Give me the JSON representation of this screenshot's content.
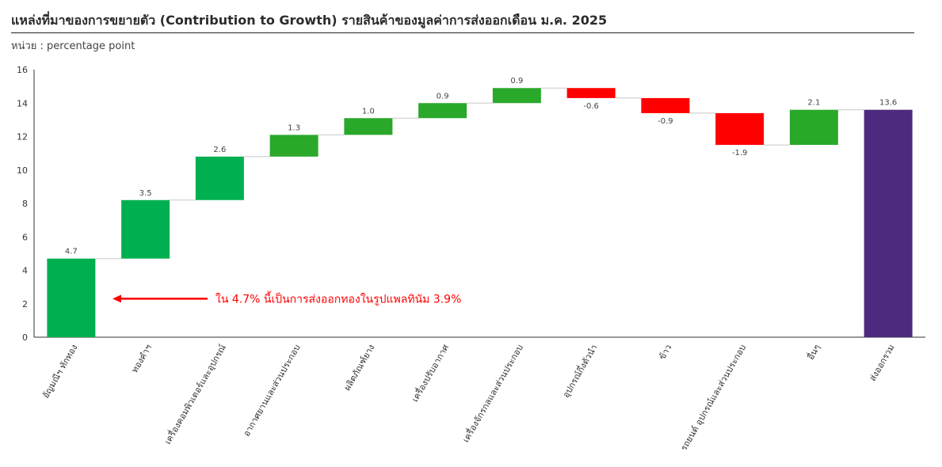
{
  "header": {
    "title": "แหล่งที่มาของการขยายตัว (Contribution to Growth) รายสินค้าของมูลค่าการส่งออกเดือน ม.ค. 2025",
    "unit": "หน่วย : percentage point"
  },
  "chart_data": {
    "type": "bar",
    "subtype": "waterfall",
    "ylim": [
      0,
      16
    ],
    "yticks": [
      0,
      2,
      4,
      6,
      8,
      10,
      12,
      14,
      16
    ],
    "grid": false,
    "categories": [
      "อัญมณีฯ ทักทอง",
      "ทองคำฯ",
      "เครื่องคอมพิวเตอร์และอุปกรณ์",
      "อากาศยานและส่วนประกอบ",
      "ผลิตภัณฑ์ยาง",
      "เครื่องปรับอากาศ",
      "เครื่องจักรกลและส่วนประกอบ",
      "อุปกรณ์กึ่งตัวนำ",
      "ข้าว",
      "รถยนต์ อุปกรณ์และส่วนประกอบ",
      "อื่นๆ",
      "ส่งออกรวม"
    ],
    "values": [
      4.7,
      3.5,
      2.6,
      1.3,
      1.0,
      0.9,
      0.9,
      -0.6,
      -0.9,
      -1.9,
      2.1,
      13.6
    ],
    "value_labels": [
      "4.7",
      "3.5",
      "2.6",
      "1.3",
      "1.0",
      "0.9",
      "0.9",
      "-0.6",
      "-0.9",
      "-1.9",
      "2.1",
      "13.6"
    ],
    "colors": [
      "#00b050",
      "#00b050",
      "#00b050",
      "#2aa82a",
      "#2aa82a",
      "#2aa82a",
      "#2aa82a",
      "#ff0000",
      "#ff0000",
      "#ff0000",
      "#2aa82a",
      "#4e2a7e"
    ],
    "annotation": {
      "text": "ใน 4.7% นี้เป็นการส่งออกทองในรูปแพลทินัม 3.9%",
      "color": "#ff0000"
    }
  }
}
